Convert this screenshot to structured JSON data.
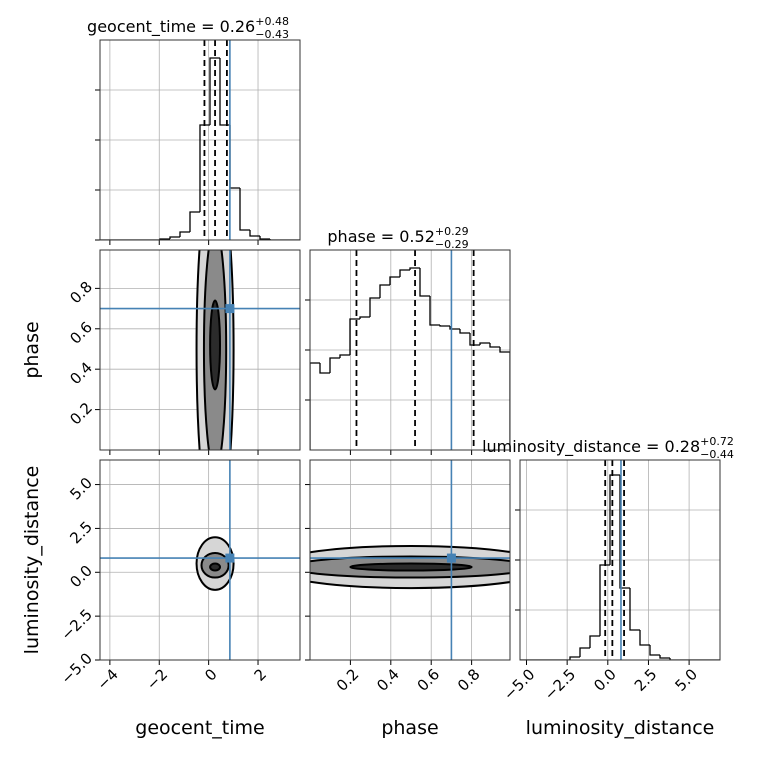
{
  "chart_data": [
    {
      "type": "hist",
      "title": {
        "text": "geocent_time = 0.26",
        "upper": "+0.48",
        "lower": "−0.43"
      },
      "bins": [
        -4.4,
        -3.995,
        -3.59,
        -3.185,
        -2.78,
        -2.375,
        -1.97,
        -1.565,
        -1.16,
        -0.755,
        -0.35,
        0.055,
        0.46,
        0.865,
        1.27,
        1.675,
        2.08,
        2.485,
        2.89,
        3.295,
        3.7
      ],
      "counts": [
        0,
        0,
        0,
        0,
        0,
        0,
        1,
        3,
        8,
        28,
        115,
        182,
        115,
        52,
        10,
        4,
        1,
        0,
        0,
        0
      ],
      "xlim": [
        -4.4,
        3.7
      ],
      "xticks": [
        -4,
        -2,
        0,
        2
      ],
      "ylim": [
        0,
        200
      ],
      "yticks": [
        0,
        50,
        100,
        150
      ],
      "quantiles": [
        -0.17,
        0.26,
        0.74
      ],
      "truth": 0.86,
      "color": "#000000",
      "truth_color": "#4682b4",
      "grid": true
    },
    {
      "type": "contour",
      "contours": [
        {
          "cx": 0.26,
          "cy": 0.5,
          "rx": 0.75,
          "ry": 0.9
        },
        {
          "cx": 0.26,
          "cy": 0.5,
          "rx": 0.45,
          "ry": 0.6
        },
        {
          "cx": 0.26,
          "cy": 0.52,
          "rx": 0.2,
          "ry": 0.22
        }
      ],
      "colors": [
        "#d6d6d6",
        "#8a8a8a",
        "#2b2b2b"
      ],
      "xlim": [
        -4.4,
        3.7
      ],
      "xticks": [
        -4,
        -2,
        0,
        2
      ],
      "ylim": [
        0,
        0.99
      ],
      "yticks": [
        0.2,
        0.4,
        0.6,
        0.8
      ],
      "ylabel": "phase",
      "truth": [
        0.86,
        0.7
      ],
      "truth_color": "#4682b4",
      "grid": true
    },
    {
      "type": "hist",
      "title": {
        "text": "phase = 0.52",
        "upper": "+0.29",
        "lower": "−0.29"
      },
      "bins": [
        0,
        0.0495,
        0.099,
        0.1485,
        0.198,
        0.2475,
        0.297,
        0.3465,
        0.396,
        0.4455,
        0.495,
        0.5445,
        0.594,
        0.6435,
        0.693,
        0.7425,
        0.792,
        0.8415,
        0.891,
        0.9405,
        0.99
      ],
      "counts": [
        87,
        77,
        92,
        95,
        131,
        133,
        152,
        165,
        173,
        180,
        182,
        154,
        125,
        124,
        121,
        117,
        105,
        107,
        103,
        98
      ],
      "xlim": [
        0,
        0.99
      ],
      "xticks": [
        0.2,
        0.4,
        0.6,
        0.8
      ],
      "ylim": [
        0,
        200
      ],
      "yticks": [
        50,
        100,
        150
      ],
      "quantiles": [
        0.23,
        0.52,
        0.81
      ],
      "truth": 0.7,
      "color": "#000000",
      "truth_color": "#4682b4",
      "grid": true
    },
    {
      "type": "contour",
      "contours": [
        {
          "cx": 0.26,
          "cy": 0.5,
          "rx": 0.75,
          "ry": 1.5
        },
        {
          "cx": 0.26,
          "cy": 0.4,
          "rx": 0.55,
          "ry": 0.7
        },
        {
          "cx": 0.26,
          "cy": 0.3,
          "rx": 0.2,
          "ry": 0.2
        }
      ],
      "colors": [
        "#d6d6d6",
        "#8a8a8a",
        "#2b2b2b"
      ],
      "xlim": [
        -4.4,
        3.7
      ],
      "xticks": [
        {
          "value": -4,
          "label": "−4"
        },
        {
          "value": -2,
          "label": "−2"
        },
        0,
        2
      ],
      "ylim": [
        -5.0,
        6.4
      ],
      "yticks": [
        {
          "value": -5,
          "label": "−5.0"
        },
        {
          "value": -2.5,
          "label": "−2.5"
        },
        {
          "value": 0,
          "label": "0.0"
        },
        2.5,
        {
          "value": 5,
          "label": "5.0"
        }
      ],
      "xlabel": "geocent_time",
      "ylabel": "luminosity_distance",
      "truth": [
        0.86,
        0.81
      ],
      "truth_color": "#4682b4",
      "grid": true
    },
    {
      "type": "contour",
      "contours": [
        {
          "cx": 0.5,
          "cy": 0.3,
          "rx": 0.7,
          "ry": 1.2
        },
        {
          "cx": 0.5,
          "cy": 0.3,
          "rx": 0.6,
          "ry": 0.6
        },
        {
          "cx": 0.5,
          "cy": 0.3,
          "rx": 0.3,
          "ry": 0.2
        }
      ],
      "colors": [
        "#d6d6d6",
        "#8a8a8a",
        "#2b2b2b"
      ],
      "xlim": [
        0,
        0.99
      ],
      "xticks": [
        0.2,
        0.4,
        0.6,
        0.8
      ],
      "ylim": [
        -5.0,
        6.4
      ],
      "yticks": [
        -5,
        -2.5,
        0,
        2.5,
        5
      ],
      "xlabel": "phase",
      "truth": [
        0.7,
        0.81
      ],
      "truth_color": "#4682b4",
      "grid": true
    },
    {
      "type": "hist",
      "title": {
        "text": "luminosity_distance = 0.28",
        "upper": "+0.72",
        "lower": "−0.44"
      },
      "bins": [
        -5.4,
        -4.785,
        -4.17,
        -3.555,
        -2.94,
        -2.325,
        -1.71,
        -1.095,
        -0.48,
        0.135,
        0.75,
        1.365,
        1.98,
        2.595,
        3.21,
        3.825,
        4.44,
        5.055,
        5.67,
        6.285,
        6.9
      ],
      "counts": [
        0,
        0,
        0,
        0,
        0,
        3,
        12,
        24,
        95,
        185,
        72,
        30,
        15,
        5,
        2,
        0,
        0,
        0,
        0,
        0
      ],
      "xlim": [
        -5.4,
        6.9
      ],
      "xticks": [
        {
          "value": -5,
          "label": "−5.0"
        },
        {
          "value": -2.5,
          "label": "−2.5"
        },
        {
          "value": 0,
          "label": "0.0"
        },
        2.5,
        {
          "value": 5,
          "label": "5.0"
        }
      ],
      "ylim": [
        0,
        200
      ],
      "yticks": [
        50,
        100,
        150
      ],
      "xlabel": "luminosity_distance",
      "quantiles": [
        -0.16,
        0.28,
        1.0
      ],
      "truth": 0.81,
      "color": "#000000",
      "truth_color": "#4682b4",
      "grid": true
    }
  ]
}
